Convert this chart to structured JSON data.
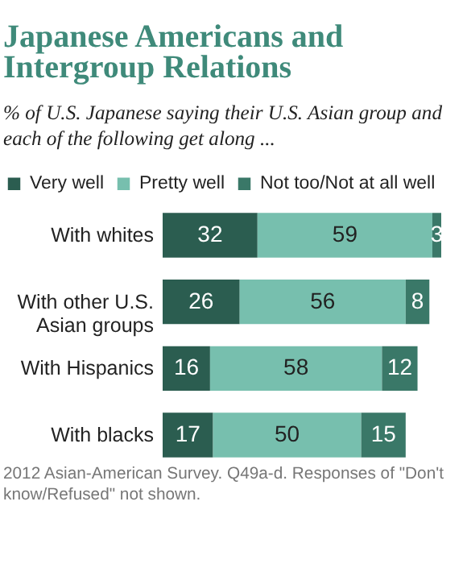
{
  "chart_data": {
    "type": "bar",
    "orientation": "horizontal",
    "stacked": true,
    "title": "Japanese Americans and Intergroup Relations",
    "subtitle": "% of U.S. Japanese saying their U.S. Asian group and each of the following get along ...",
    "categories": [
      "With whites",
      "With other U.S. Asian groups",
      "With Hispanics",
      "With blacks"
    ],
    "series": [
      {
        "name": "Very well",
        "color": "#2b5d50",
        "values": [
          32,
          26,
          16,
          17
        ]
      },
      {
        "name": "Pretty well",
        "color": "#77bfae",
        "values": [
          59,
          56,
          58,
          50
        ]
      },
      {
        "name": "Not too/Not at all well",
        "color": "#3a7868",
        "values": [
          3,
          8,
          12,
          15
        ]
      }
    ],
    "data_labels": true,
    "legend": "top",
    "tick_labels": false,
    "annotations": [
      "2012 Asian-American Survey. Q49a-d. Responses of \"Don't know/Refused\" not shown."
    ]
  }
}
